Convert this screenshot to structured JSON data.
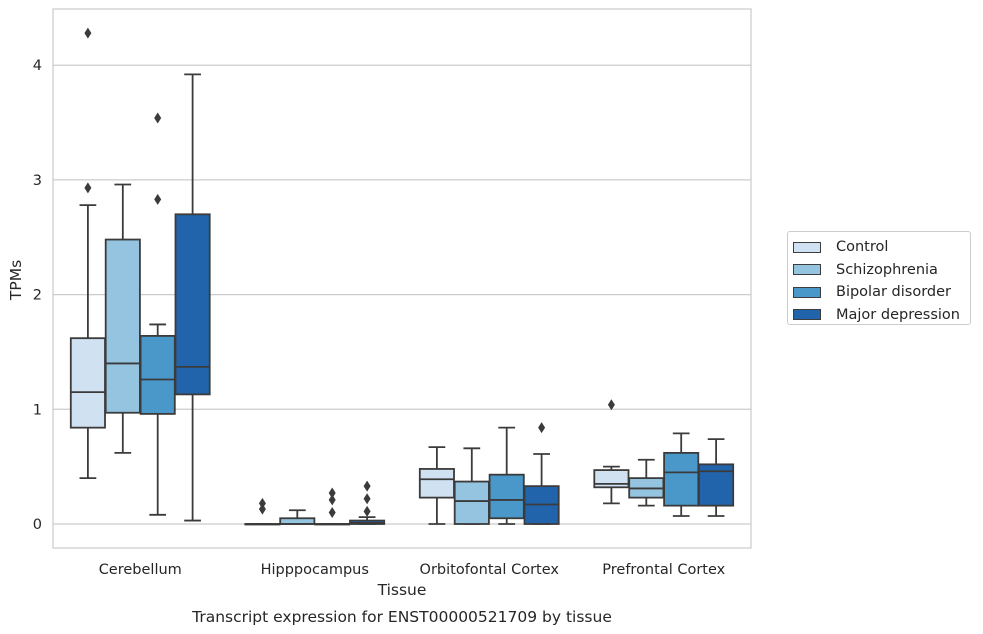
{
  "chart_data": {
    "type": "box",
    "title": "Transcript expression for ENST00000521709 by tissue",
    "xlabel": "Tissue",
    "ylabel": "TPMs",
    "ylim": [
      -0.2,
      4.5
    ],
    "yticks": [
      0,
      1,
      2,
      3,
      4
    ],
    "grid": "horizontal",
    "legend_position": "right",
    "categories": [
      "Cerebellum",
      "Hipppocampus",
      "Orbitofontal Cortex",
      "Prefrontal Cortex"
    ],
    "series": [
      {
        "name": "Control",
        "color": "#d0e1f2",
        "boxes": [
          {
            "whislo": 0.4,
            "q1": 0.84,
            "med": 1.15,
            "q3": 1.62,
            "whishi": 2.78,
            "fliers": [
              2.93,
              4.28
            ]
          },
          {
            "whislo": 0.0,
            "q1": 0.0,
            "med": 0.0,
            "q3": 0.0,
            "whishi": 0.0,
            "fliers": [
              0.13,
              0.18
            ]
          },
          {
            "whislo": 0.0,
            "q1": 0.23,
            "med": 0.39,
            "q3": 0.48,
            "whishi": 0.67,
            "fliers": []
          },
          {
            "whislo": 0.18,
            "q1": 0.32,
            "med": 0.35,
            "q3": 0.47,
            "whishi": 0.5,
            "fliers": [
              1.04
            ]
          }
        ]
      },
      {
        "name": "Schizophrenia",
        "color": "#94c4df",
        "boxes": [
          {
            "whislo": 0.62,
            "q1": 0.97,
            "med": 1.4,
            "q3": 2.48,
            "whishi": 2.96,
            "fliers": []
          },
          {
            "whislo": 0.0,
            "q1": 0.0,
            "med": 0.0,
            "q3": 0.05,
            "whishi": 0.12,
            "fliers": []
          },
          {
            "whislo": 0.0,
            "q1": 0.0,
            "med": 0.2,
            "q3": 0.37,
            "whishi": 0.66,
            "fliers": []
          },
          {
            "whislo": 0.16,
            "q1": 0.23,
            "med": 0.31,
            "q3": 0.4,
            "whishi": 0.56,
            "fliers": []
          }
        ]
      },
      {
        "name": "Bipolar disorder",
        "color": "#4a98c9",
        "boxes": [
          {
            "whislo": 0.08,
            "q1": 0.96,
            "med": 1.26,
            "q3": 1.64,
            "whishi": 1.74,
            "fliers": [
              2.83,
              3.54
            ]
          },
          {
            "whislo": 0.0,
            "q1": 0.0,
            "med": 0.0,
            "q3": 0.0,
            "whishi": 0.0,
            "fliers": [
              0.1,
              0.21,
              0.27
            ]
          },
          {
            "whislo": 0.0,
            "q1": 0.05,
            "med": 0.21,
            "q3": 0.43,
            "whishi": 0.84,
            "fliers": []
          },
          {
            "whislo": 0.07,
            "q1": 0.16,
            "med": 0.45,
            "q3": 0.62,
            "whishi": 0.79,
            "fliers": []
          }
        ]
      },
      {
        "name": "Major depression",
        "color": "#2164ab",
        "boxes": [
          {
            "whislo": 0.03,
            "q1": 1.13,
            "med": 1.37,
            "q3": 2.7,
            "whishi": 3.92,
            "fliers": []
          },
          {
            "whislo": 0.0,
            "q1": 0.0,
            "med": 0.01,
            "q3": 0.03,
            "whishi": 0.06,
            "fliers": [
              0.11,
              0.22,
              0.33
            ]
          },
          {
            "whislo": 0.0,
            "q1": 0.0,
            "med": 0.17,
            "q3": 0.33,
            "whishi": 0.61,
            "fliers": [
              0.84
            ]
          },
          {
            "whislo": 0.07,
            "q1": 0.16,
            "med": 0.46,
            "q3": 0.52,
            "whishi": 0.74,
            "fliers": []
          }
        ]
      }
    ]
  }
}
